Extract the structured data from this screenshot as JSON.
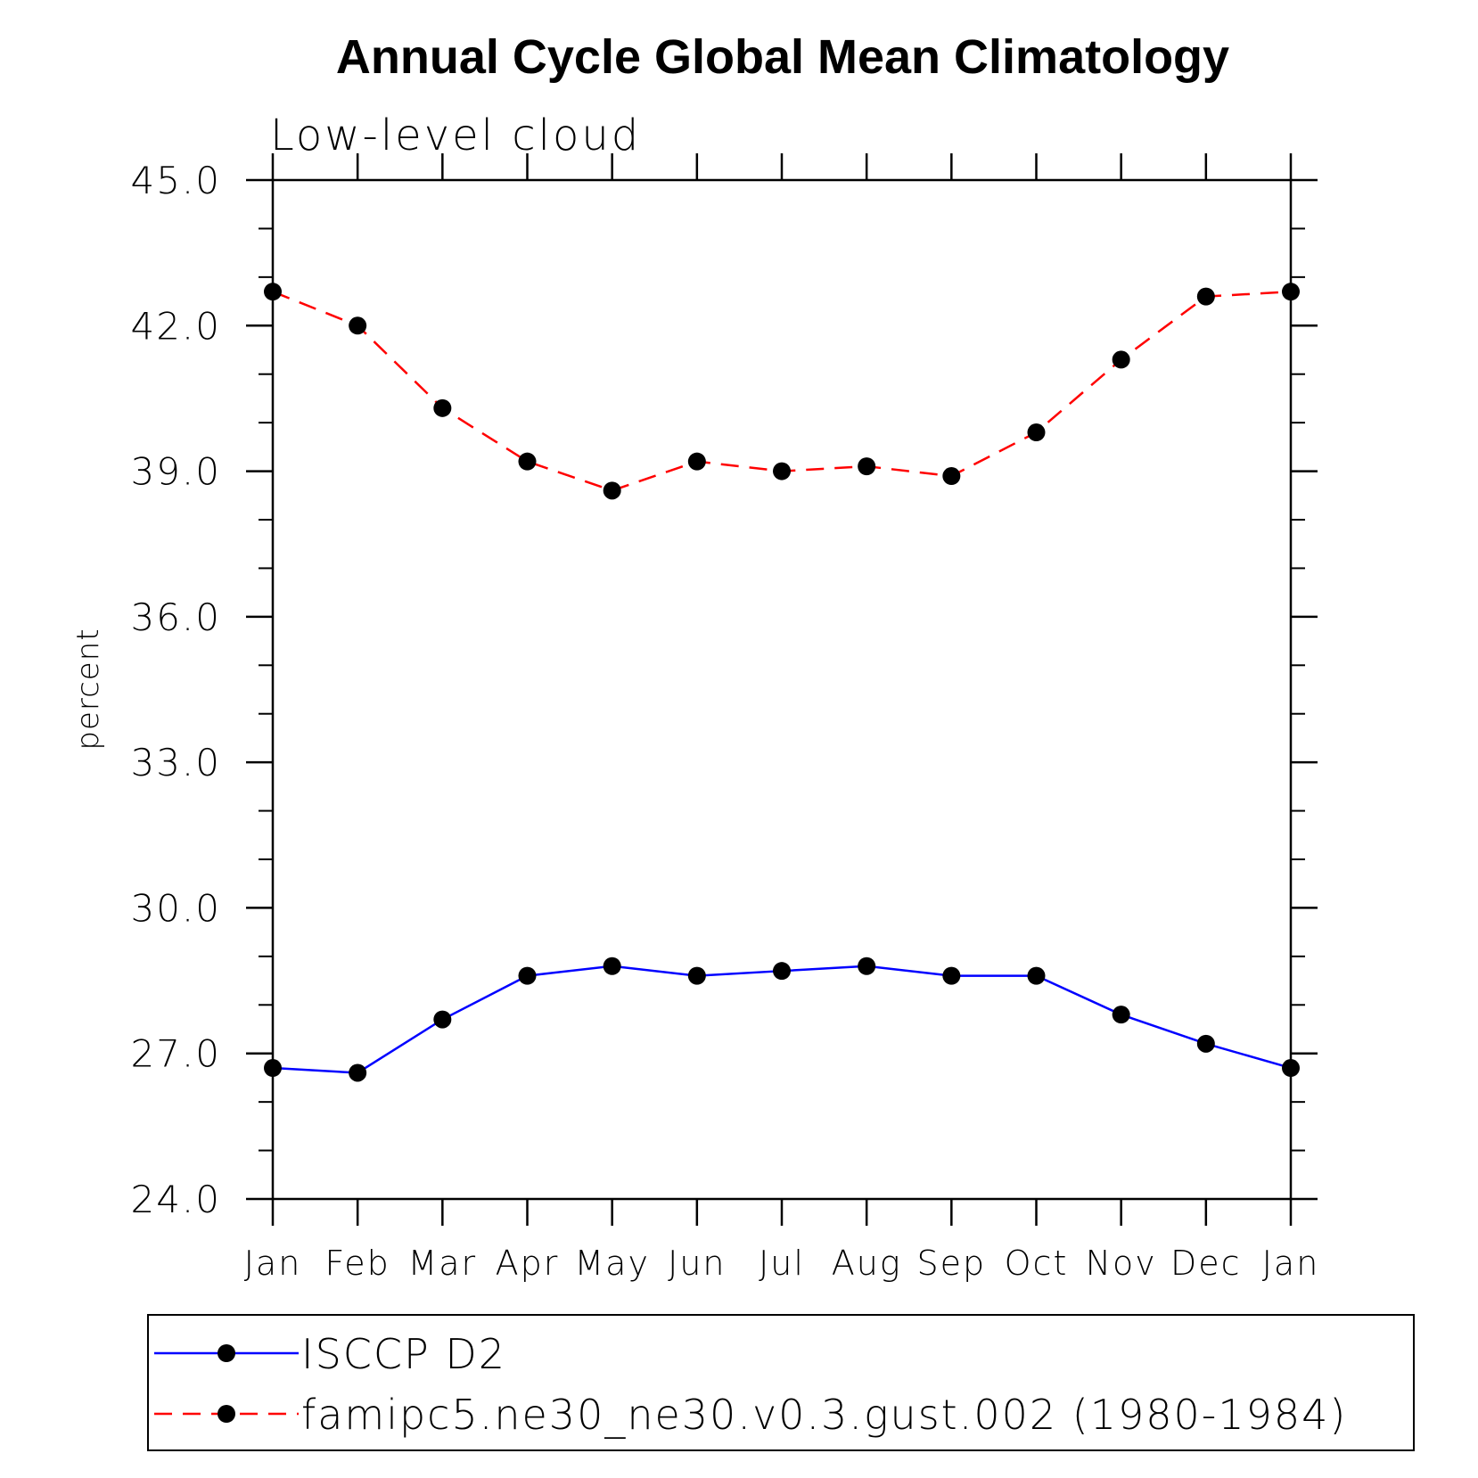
{
  "chart_data": {
    "type": "line",
    "title": "Annual Cycle Global Mean Climatology",
    "subtitle": "Low-level cloud",
    "xlabel": "",
    "ylabel": "percent",
    "categories": [
      "Jan",
      "Feb",
      "Mar",
      "Apr",
      "May",
      "Jun",
      "Jul",
      "Aug",
      "Sep",
      "Oct",
      "Nov",
      "Dec",
      "Jan"
    ],
    "ylim": [
      24.0,
      45.0
    ],
    "yticks": [
      "24.0",
      "27.0",
      "30.0",
      "33.0",
      "36.0",
      "39.0",
      "42.0",
      "45.0"
    ],
    "yminor_step": 1.0,
    "grid": false,
    "legend_position": "bottom",
    "series": [
      {
        "name": "ISCCP D2",
        "color": "#0000ff",
        "dash": "solid",
        "marker": "filled-circle",
        "values": [
          26.7,
          26.6,
          27.7,
          28.6,
          28.8,
          28.6,
          28.7,
          28.8,
          28.6,
          28.6,
          27.8,
          27.2,
          26.7
        ]
      },
      {
        "name": "famipc5.ne30_ne30.v0.3.gust.002 (1980-1984)",
        "color": "#ff0000",
        "dash": "dashed",
        "marker": "filled-circle",
        "values": [
          42.7,
          42.0,
          40.3,
          39.2,
          38.6,
          39.2,
          39.0,
          39.1,
          38.9,
          39.8,
          41.3,
          42.6,
          42.7
        ]
      }
    ]
  }
}
